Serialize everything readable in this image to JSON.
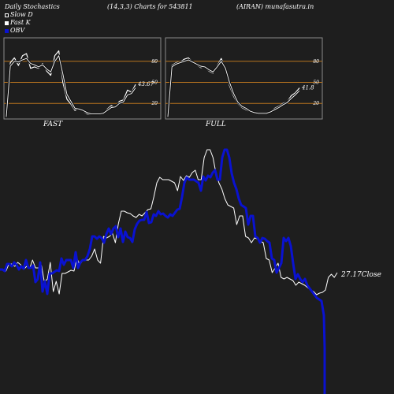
{
  "header": {
    "left": "Daily Stochastics",
    "center": "(14,3,3) Charts for 543811",
    "right": "(AIRAN) munafasutra.in"
  },
  "legend": [
    {
      "label": "Slow  D",
      "color": "#ffffff"
    },
    {
      "label": "Fast K",
      "color": "#ffffff"
    },
    {
      "label": "OBV",
      "color": "#0a12d0"
    }
  ],
  "colors": {
    "background": "#1e1e1e",
    "panel": "#1e1e1e",
    "band": "#b8741f",
    "obv": "#0a12d0",
    "price": "#ffffff"
  },
  "chart_data": [
    {
      "type": "line",
      "title": "FAST",
      "ylim": [
        0,
        100
      ],
      "bands": [
        20,
        50,
        80
      ],
      "tick_labels": [
        "80",
        "50",
        "20"
      ],
      "end_label": "43.67",
      "series": [
        {
          "name": "Fast K",
          "values": [
            1,
            78,
            85,
            74,
            88,
            91,
            70,
            72,
            70,
            77,
            66,
            60,
            88,
            95,
            50,
            26,
            19,
            10,
            13,
            9,
            5,
            4,
            4,
            4,
            5,
            12,
            17,
            14,
            23,
            25,
            39,
            36,
            47
          ]
        },
        {
          "name": "Slow  D",
          "values": [
            1,
            73,
            80,
            79,
            82,
            84,
            77,
            75,
            72,
            75,
            69,
            65,
            80,
            88,
            62,
            33,
            23,
            13,
            12,
            10,
            7,
            5,
            5,
            5,
            6,
            10,
            14,
            15,
            20,
            22,
            32,
            34,
            42
          ]
        }
      ]
    },
    {
      "type": "line",
      "title": "FULL",
      "ylim": [
        0,
        100
      ],
      "bands": [
        20,
        50,
        80
      ],
      "tick_labels": [
        "80",
        "50",
        "20"
      ],
      "end_label": "41.8",
      "series": [
        {
          "name": "Fast K",
          "values": [
            1,
            74,
            78,
            79,
            83,
            85,
            79,
            75,
            71,
            72,
            66,
            63,
            74,
            84,
            69,
            45,
            30,
            20,
            14,
            11,
            8,
            6,
            5,
            5,
            5,
            8,
            13,
            16,
            20,
            22,
            31,
            35,
            42
          ]
        },
        {
          "name": "Slow  D",
          "values": [
            1,
            72,
            76,
            78,
            80,
            82,
            79,
            76,
            73,
            72,
            68,
            65,
            72,
            80,
            70,
            50,
            34,
            22,
            16,
            13,
            9,
            7,
            6,
            6,
            6,
            8,
            11,
            14,
            18,
            21,
            27,
            32,
            38
          ]
        }
      ]
    },
    {
      "type": "line",
      "end_label": "27.17Close",
      "series": [
        {
          "name": "OBV",
          "values": [
            342,
            342,
            344,
            335,
            335,
            338,
            333,
            336,
            342,
            338,
            341,
            330,
            340,
            340,
            337,
            358,
            354,
            333,
            370,
            357,
            373,
            347,
            347,
            345,
            343,
            344,
            328,
            336,
            330,
            330,
            330,
            340,
            320,
            340,
            333,
            330,
            330,
            325,
            316,
            300,
            300,
            303,
            300,
            302,
            308,
            297,
            290,
            297,
            290,
            287,
            301,
            290,
            307,
            294,
            301,
            302,
            307,
            291,
            284,
            280,
            279,
            279,
            269,
            283,
            282,
            272,
            274,
            268,
            272,
            271,
            274,
            276,
            272,
            274,
            270,
            266,
            265,
            250,
            232,
            225,
            228,
            228,
            228,
            230,
            232,
            242,
            224,
            229,
            223,
            225,
            219,
            216,
            228,
            228,
            200,
            190,
            190,
            200,
            220,
            232,
            240,
            252,
            260,
            262,
            264,
            285,
            274,
            274,
            300,
            302,
            308,
            302,
            303,
            306,
            308,
            328,
            330,
            346,
            340,
            334,
            302,
            306,
            302,
            312,
            334,
            354,
            348,
            354,
            358,
            354,
            362,
            366,
            370,
            374,
            378,
            380,
            382,
            400,
            442,
            478,
            500
          ]
        },
        {
          "name": "Close",
          "values": [
            342,
            342,
            344,
            335,
            335,
            338,
            333,
            336,
            342,
            338,
            341,
            330,
            340,
            340,
            337,
            358,
            354,
            333,
            370,
            357,
            373,
            347,
            347,
            345,
            343,
            344,
            328,
            336,
            330,
            330,
            330,
            325,
            316,
            330,
            334,
            300,
            302,
            300,
            296,
            308,
            284,
            268,
            268,
            270,
            271,
            274,
            276,
            272,
            274,
            270,
            266,
            265,
            250,
            232,
            225,
            228,
            228,
            228,
            230,
            232,
            242,
            224,
            229,
            223,
            225,
            219,
            216,
            228,
            228,
            200,
            190,
            190,
            200,
            220,
            232,
            240,
            252,
            260,
            262,
            264,
            285,
            274,
            274,
            300,
            302,
            308,
            302,
            303,
            306,
            308,
            328,
            330,
            346,
            340,
            334,
            352,
            354,
            352,
            354,
            356,
            362,
            358,
            360,
            362,
            365,
            368,
            370,
            374,
            372,
            371,
            368,
            352,
            348,
            352,
            346
          ]
        }
      ]
    }
  ]
}
